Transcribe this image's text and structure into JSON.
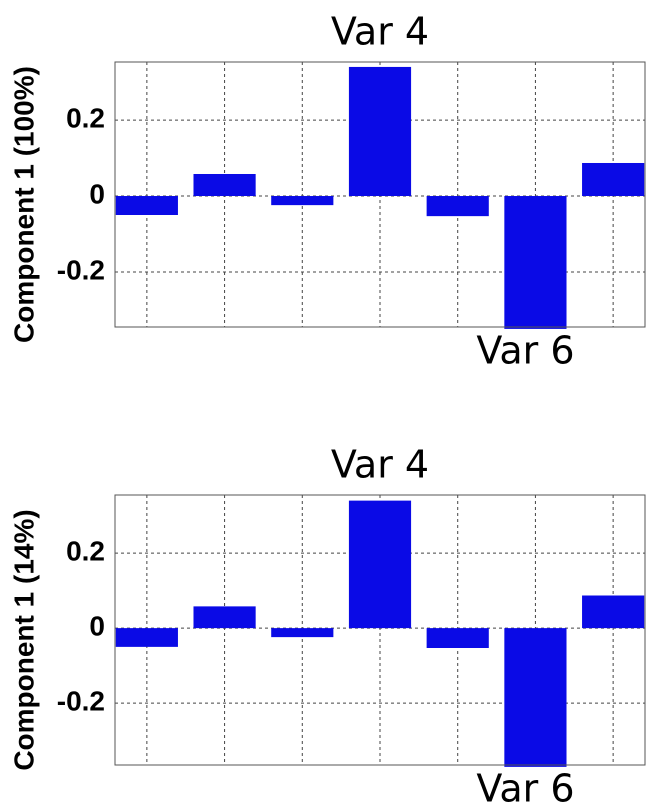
{
  "chart_data": [
    {
      "type": "bar",
      "ylabel": "Component 1 (100%)",
      "categories": [
        null,
        null,
        null,
        null,
        null,
        null,
        null
      ],
      "values": [
        -0.05,
        0.058,
        -0.024,
        0.34,
        -0.053,
        -0.35,
        0.087
      ],
      "color": "#0a0ae6",
      "ylim": [
        -0.345,
        0.353
      ],
      "yticks": [
        -0.2,
        0,
        0.2
      ],
      "grid": true,
      "annotations": [
        "Var 4",
        "Var 6"
      ]
    },
    {
      "type": "bar",
      "ylabel": "Component 1 (14%)",
      "categories": [
        null,
        null,
        null,
        null,
        null,
        null,
        null
      ],
      "values": [
        -0.05,
        0.058,
        -0.024,
        0.34,
        -0.053,
        -0.37,
        0.087
      ],
      "color": "#0a0ae6",
      "ylim": [
        -0.365,
        0.355
      ],
      "yticks": [
        -0.2,
        0,
        0.2
      ],
      "grid": true,
      "annotations": [
        "Var 4",
        "Var 6"
      ]
    }
  ]
}
